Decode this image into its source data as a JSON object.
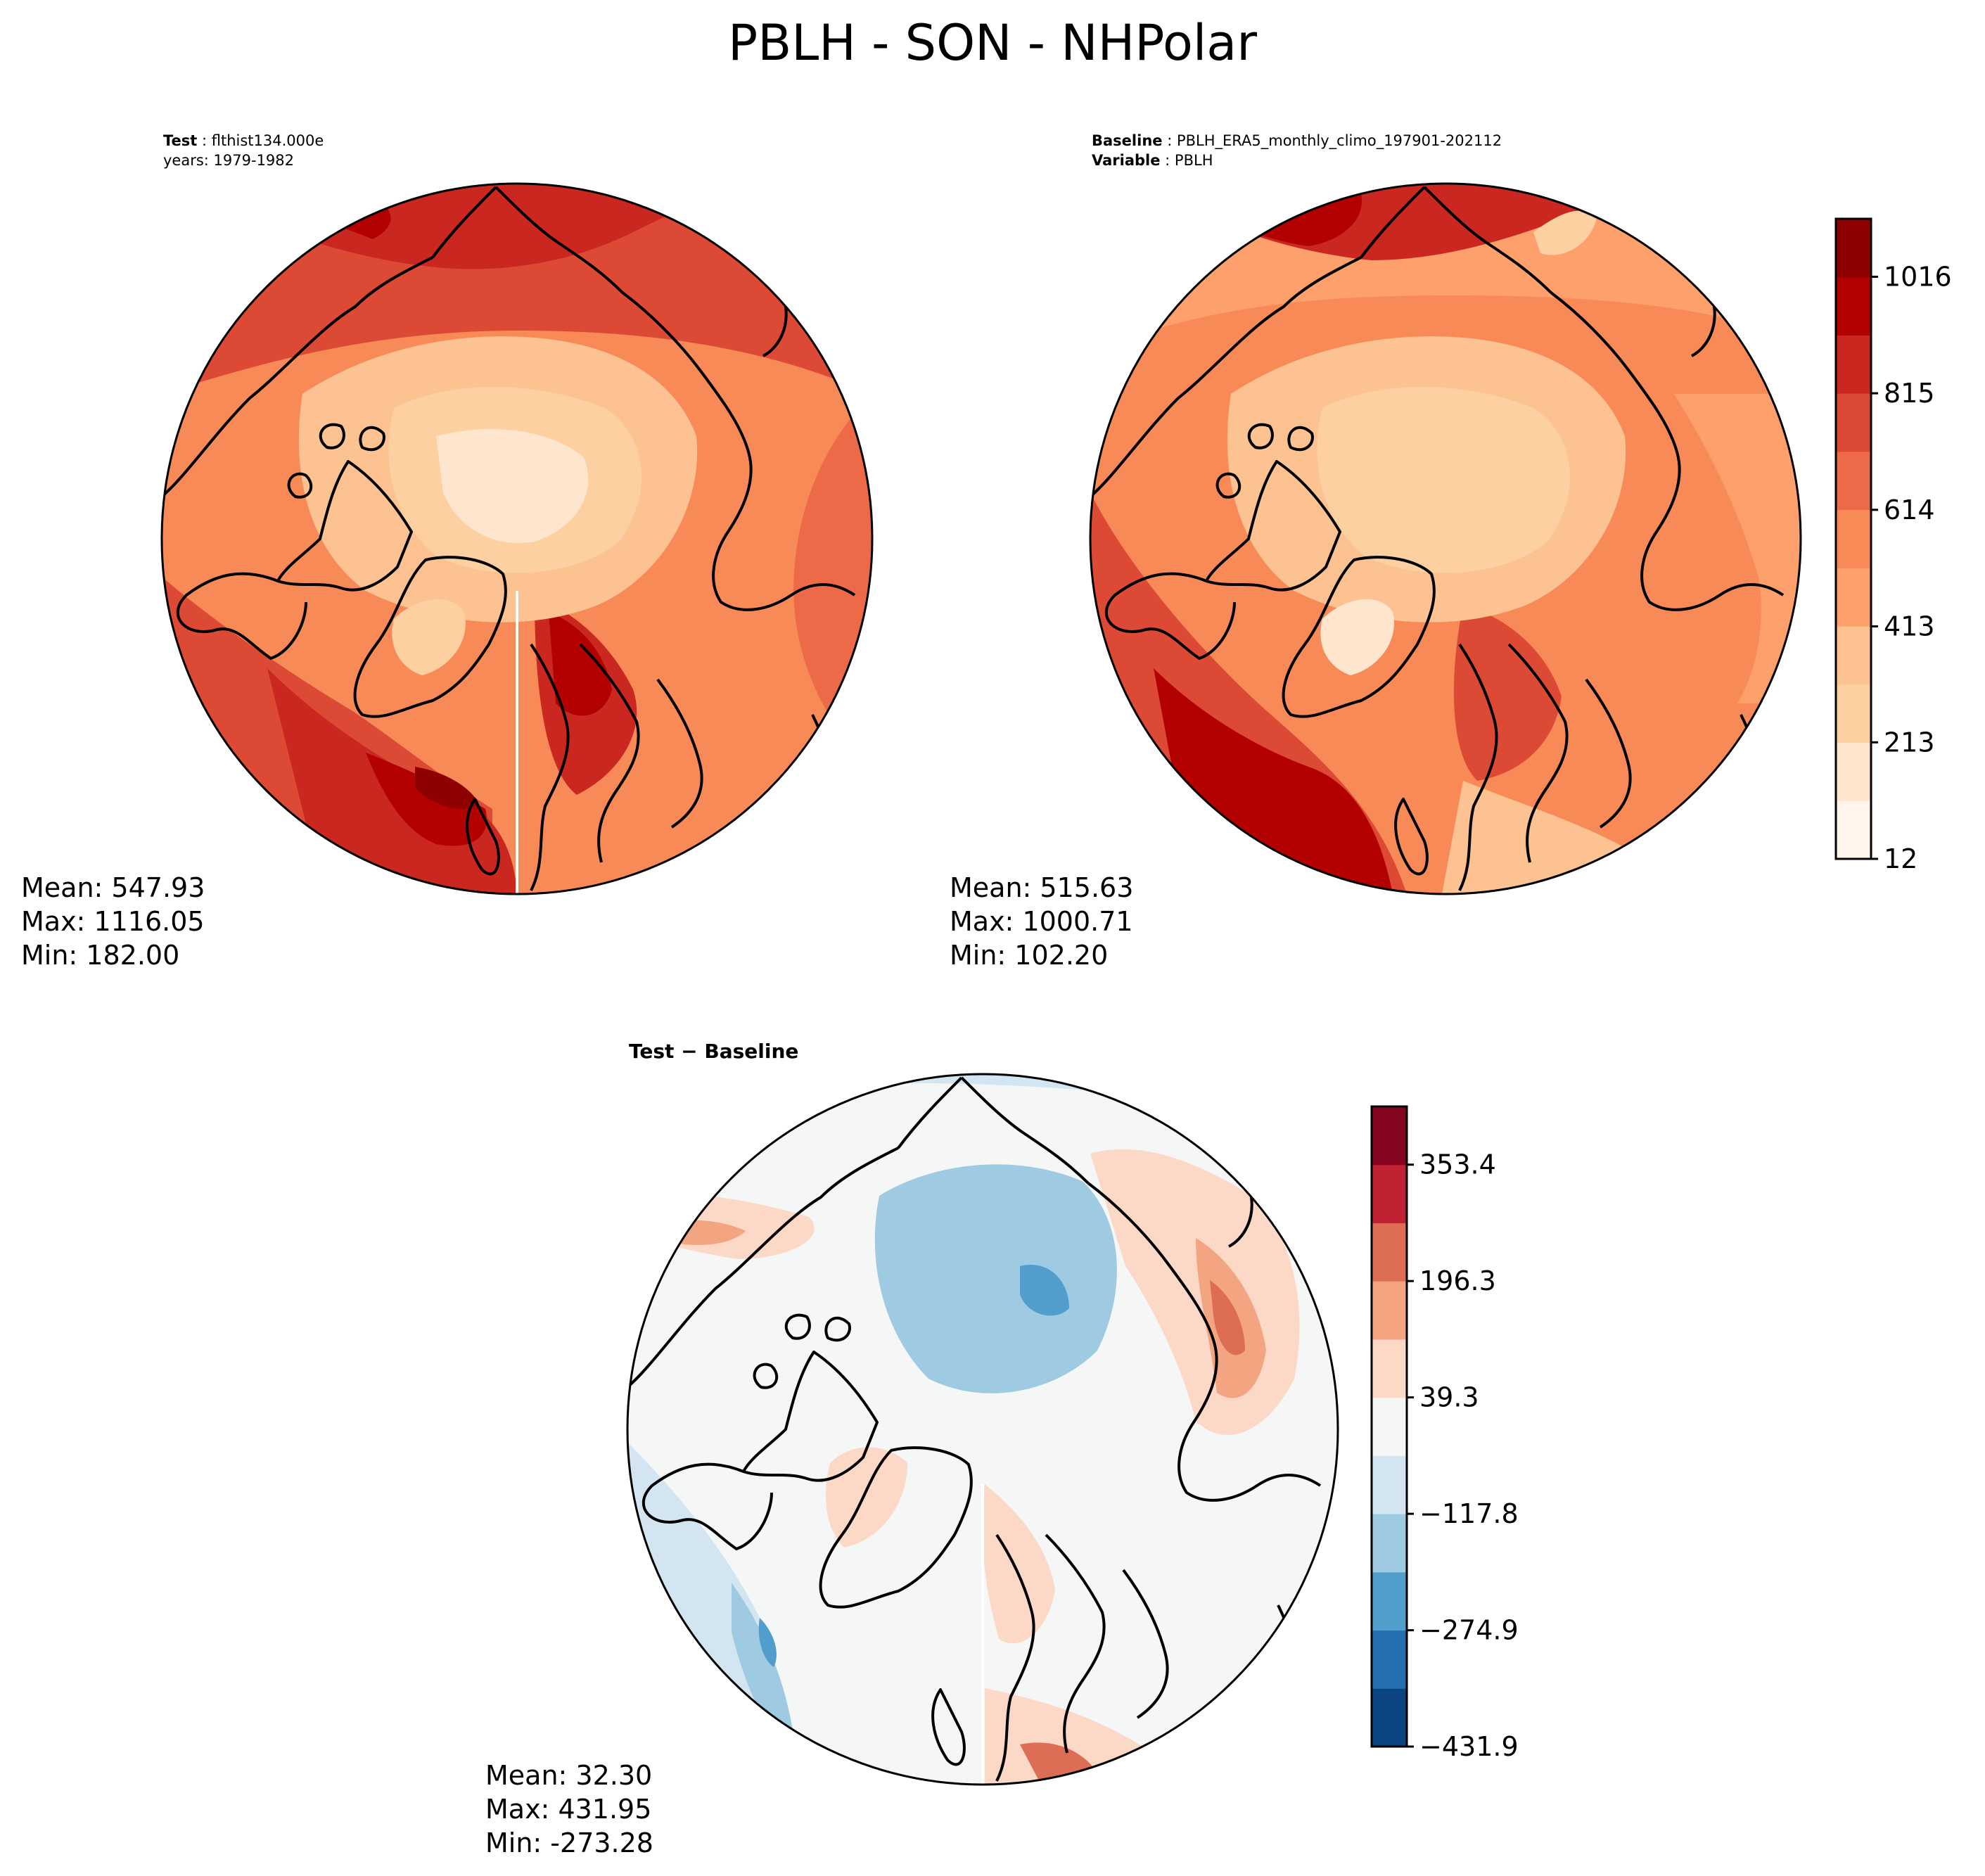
{
  "figure": {
    "title": "PBLH - SON - NHPolar",
    "colors": {
      "seq": [
        "#fff5eb",
        "#fee6ce",
        "#fdd0a2",
        "#fdc291",
        "#fda06b",
        "#f88a58",
        "#ec6a48",
        "#dc4a35",
        "#c9271f",
        "#b30000",
        "#8f0000"
      ],
      "div": [
        "#0b4480",
        "#2470b0",
        "#519ecd",
        "#9ecae2",
        "#d3e5f1",
        "#f5f6f6",
        "#fcd8c6",
        "#f3a481",
        "#dd6e55",
        "#bf2230",
        "#87061f"
      ]
    }
  },
  "panels": {
    "test": {
      "label_key": "Test",
      "label_value": "flthist134.000e",
      "years": "years: 1979-1982",
      "stats": {
        "mean": "Mean: 547.93",
        "max": "Max: 1116.05",
        "min": "Min: 182.00"
      }
    },
    "baseline": {
      "label_key": "Baseline",
      "label_value": "PBLH_ERA5_monthly_climo_197901-202112",
      "variable_key": "Variable",
      "variable_value": "PBLH",
      "stats": {
        "mean": "Mean: 515.63",
        "max": "Max: 1000.71",
        "min": "Min: 102.20"
      }
    },
    "diff": {
      "title": "Test − Baseline",
      "stats": {
        "mean": "Mean: 32.30",
        "max": "Max: 431.95",
        "min": "Min: -273.28"
      }
    }
  },
  "chart_data": [
    {
      "type": "heatmap",
      "name": "Test",
      "projection": "north-polar-stereographic",
      "variable": "PBLH",
      "stats": {
        "mean": 547.93,
        "max": 1116.05,
        "min": 182.0
      }
    },
    {
      "type": "heatmap",
      "name": "Baseline",
      "projection": "north-polar-stereographic",
      "variable": "PBLH",
      "stats": {
        "mean": 515.63,
        "max": 1000.71,
        "min": 102.2
      },
      "colorbar": {
        "ticks": [
          "1016",
          "815",
          "614",
          "413",
          "213",
          "12"
        ],
        "vmin": 12,
        "vmax": 1116,
        "levels": 11
      }
    },
    {
      "type": "heatmap",
      "name": "Test − Baseline",
      "projection": "north-polar-stereographic",
      "stats": {
        "mean": 32.3,
        "max": 431.95,
        "min": -273.28
      },
      "colorbar": {
        "ticks": [
          "353.4",
          "196.3",
          "39.3",
          "−117.8",
          "−274.9",
          "−431.9"
        ],
        "vmin": -431.9,
        "vmax": 431.9,
        "levels": 11
      }
    }
  ]
}
